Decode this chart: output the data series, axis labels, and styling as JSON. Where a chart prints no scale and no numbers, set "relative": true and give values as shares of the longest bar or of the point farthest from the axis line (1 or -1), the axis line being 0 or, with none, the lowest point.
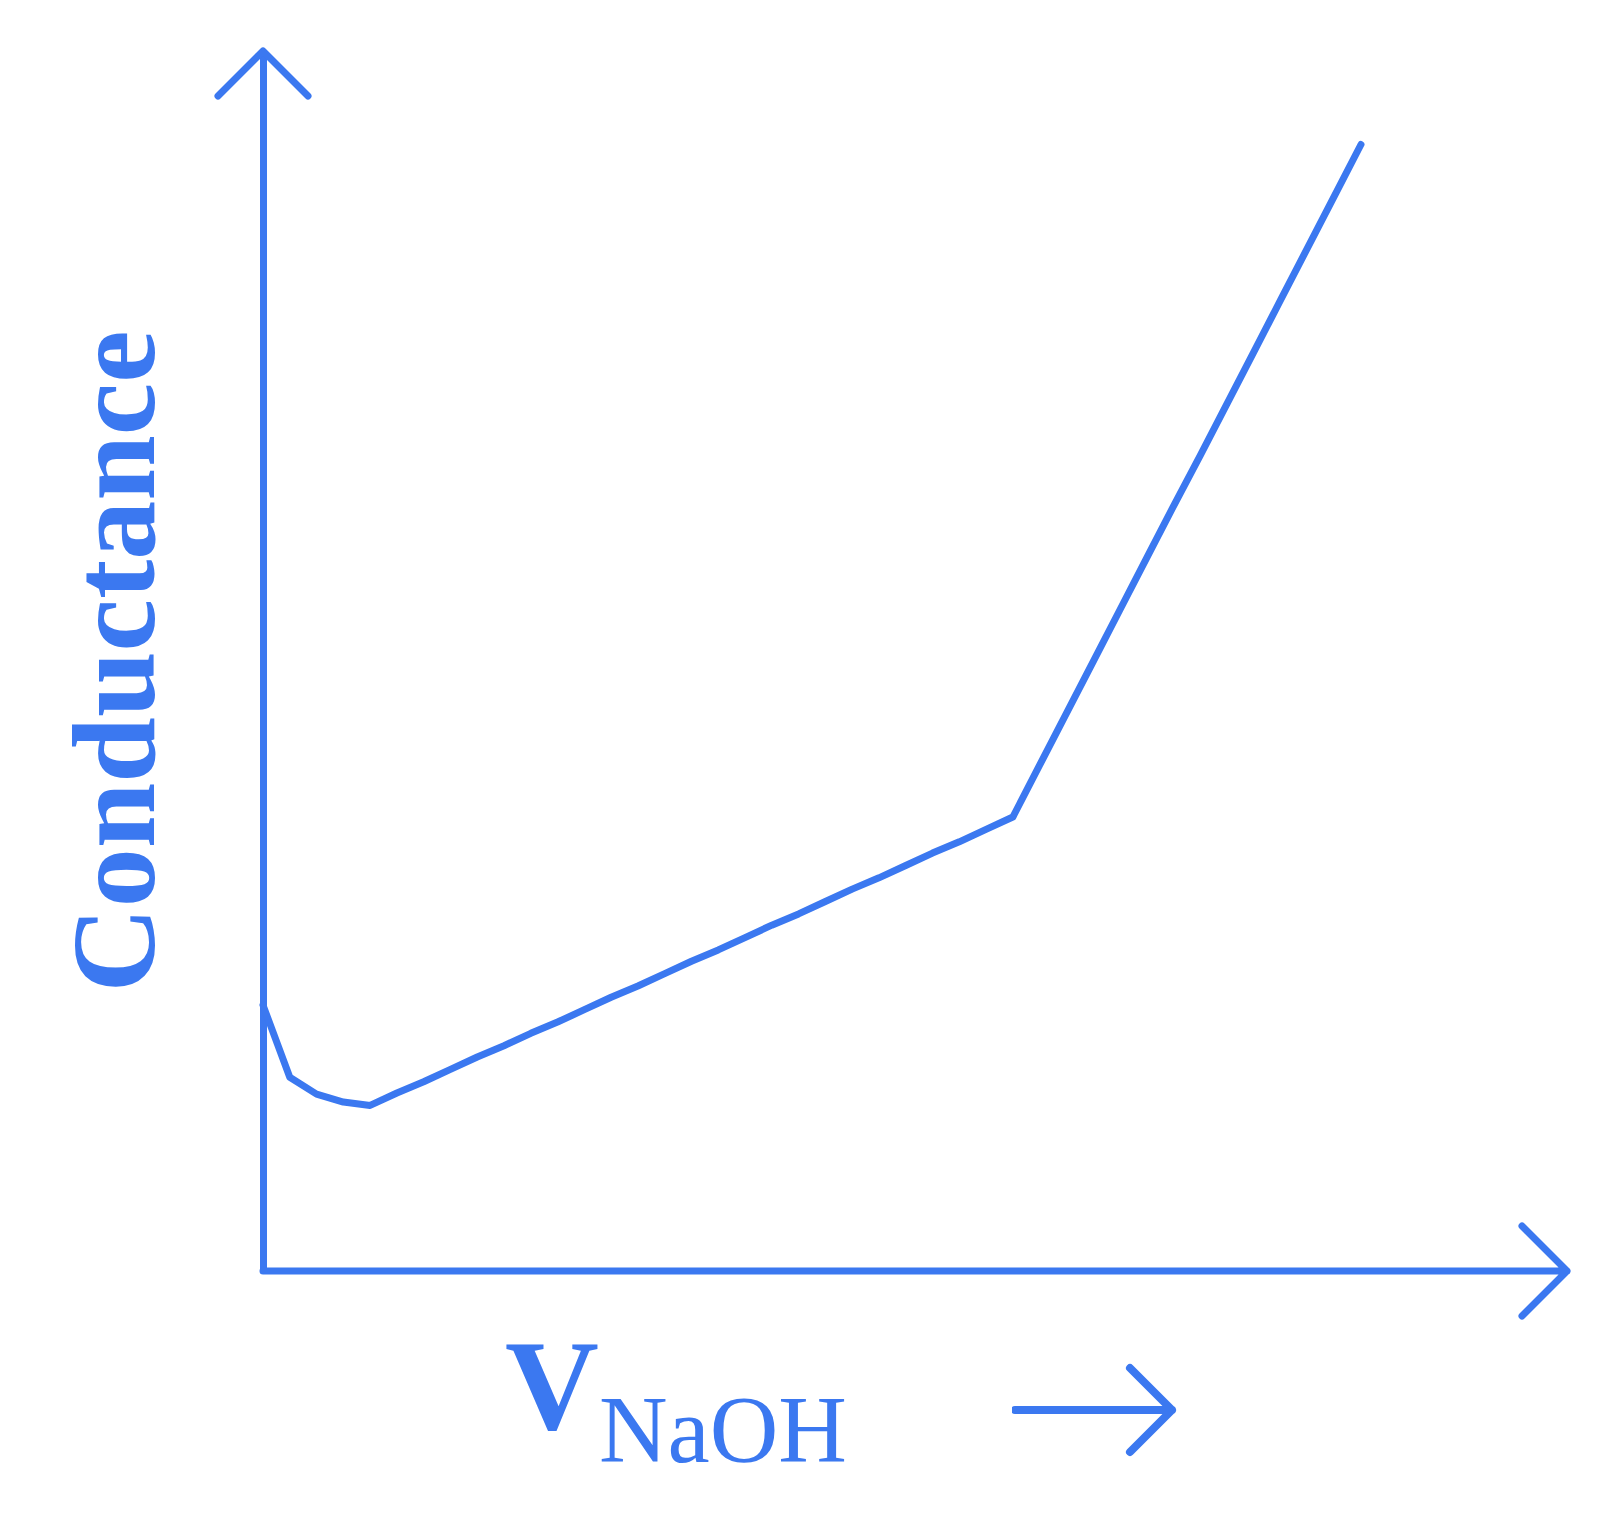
{
  "chart_data": {
    "type": "line",
    "relative": true,
    "xlabel": "V$_{NaOH}$",
    "ylabel": "Conductance",
    "grid": false,
    "legend": false,
    "marker": "none",
    "line_style": "solid",
    "categories": [
      null,
      null,
      null,
      null,
      null,
      null,
      null,
      null,
      null,
      null,
      null,
      null,
      null,
      null,
      null,
      null,
      null,
      null,
      null,
      null,
      null,
      null,
      null,
      null,
      null,
      null,
      null,
      null,
      null,
      null,
      null,
      null,
      null,
      null,
      null,
      null,
      null,
      null,
      null,
      null,
      null,
      null
    ],
    "series": [
      {
        "color": "#3b78f0",
        "values": [
          0.236,
          0.172,
          0.157,
          0.15,
          0.147,
          0.158,
          0.168,
          0.179,
          0.19,
          0.2,
          0.211,
          0.221,
          0.232,
          0.243,
          0.253,
          0.264,
          0.275,
          0.285,
          0.296,
          0.307,
          0.317,
          0.328,
          0.339,
          0.349,
          0.36,
          0.371,
          0.381,
          0.392,
          0.403,
          0.449,
          0.495,
          0.541,
          0.587,
          0.633,
          0.679,
          0.724,
          0.77,
          0.816,
          0.862,
          0.908,
          0.954,
          1.0
        ]
      }
    ]
  }
}
